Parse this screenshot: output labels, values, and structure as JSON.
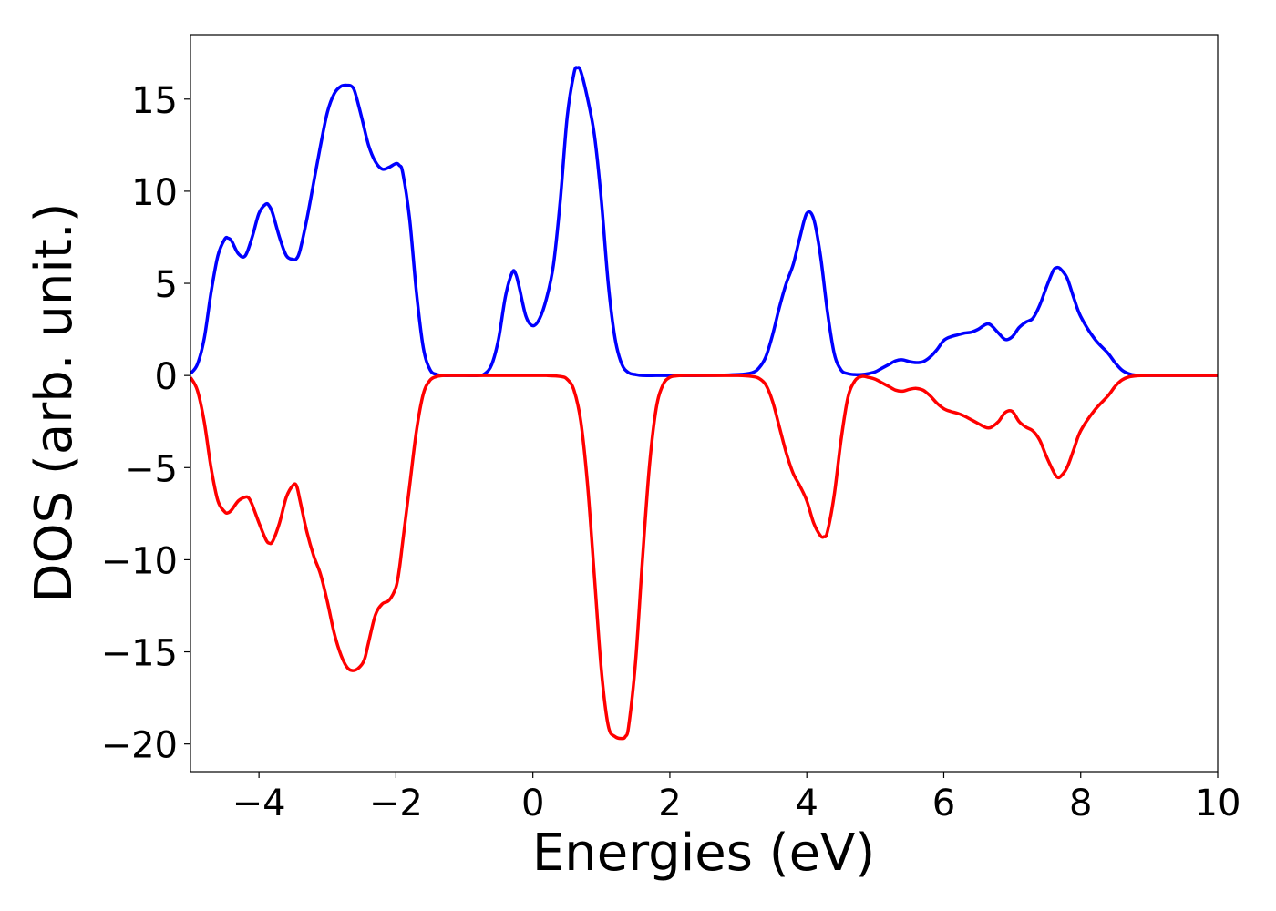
{
  "chart_data": {
    "type": "line",
    "title": "",
    "xlabel": "Energies (eV)",
    "ylabel": "DOS (arb. unit.)",
    "xlim": [
      -5,
      10
    ],
    "ylim": [
      -21.5,
      18.5
    ],
    "xticks": [
      -4,
      -2,
      0,
      2,
      4,
      6,
      8,
      10
    ],
    "xtick_labels": [
      "−4",
      "−2",
      "0",
      "2",
      "4",
      "6",
      "8",
      "10"
    ],
    "yticks": [
      15,
      10,
      5,
      0,
      -5,
      -10,
      -15,
      -20
    ],
    "ytick_labels": [
      "15",
      "10",
      "5",
      "0",
      "−5",
      "−10",
      "−15",
      "−20"
    ],
    "grid": false,
    "legend": "none",
    "series": [
      {
        "color": "#0000ff",
        "x": [
          -5.0,
          -4.9,
          -4.8,
          -4.7,
          -4.6,
          -4.5,
          -4.45,
          -4.4,
          -4.3,
          -4.2,
          -4.1,
          -4.0,
          -3.9,
          -3.85,
          -3.8,
          -3.7,
          -3.6,
          -3.5,
          -3.45,
          -3.4,
          -3.3,
          -3.2,
          -3.1,
          -3.0,
          -2.9,
          -2.8,
          -2.7,
          -2.65,
          -2.6,
          -2.5,
          -2.4,
          -2.3,
          -2.2,
          -2.1,
          -2.0,
          -1.95,
          -1.9,
          -1.8,
          -1.7,
          -1.6,
          -1.5,
          -1.4,
          -1.3,
          -1.2,
          -1.0,
          -0.8,
          -0.7,
          -0.6,
          -0.5,
          -0.4,
          -0.3,
          -0.25,
          -0.2,
          -0.1,
          0.0,
          0.1,
          0.2,
          0.3,
          0.4,
          0.5,
          0.6,
          0.65,
          0.7,
          0.8,
          0.9,
          1.0,
          1.1,
          1.2,
          1.3,
          1.4,
          1.5,
          1.6,
          1.8,
          2.0,
          2.5,
          3.0,
          3.2,
          3.3,
          3.4,
          3.5,
          3.6,
          3.7,
          3.8,
          3.9,
          4.0,
          4.1,
          4.2,
          4.3,
          4.4,
          4.5,
          4.6,
          4.7,
          4.8,
          4.9,
          5.0,
          5.1,
          5.2,
          5.3,
          5.4,
          5.5,
          5.6,
          5.7,
          5.8,
          5.9,
          6.0,
          6.1,
          6.2,
          6.3,
          6.4,
          6.5,
          6.6,
          6.65,
          6.7,
          6.8,
          6.9,
          7.0,
          7.1,
          7.2,
          7.3,
          7.4,
          7.5,
          7.6,
          7.65,
          7.7,
          7.8,
          7.9,
          8.0,
          8.2,
          8.4,
          8.5,
          8.6,
          8.7,
          8.8,
          9.0,
          9.5,
          10.0
        ],
        "y": [
          0.1,
          0.6,
          2.0,
          4.5,
          6.5,
          7.4,
          7.45,
          7.3,
          6.6,
          6.5,
          7.5,
          8.8,
          9.3,
          9.2,
          8.8,
          7.5,
          6.5,
          6.3,
          6.35,
          6.8,
          8.5,
          10.5,
          12.5,
          14.3,
          15.3,
          15.7,
          15.75,
          15.7,
          15.4,
          14.0,
          12.5,
          11.6,
          11.2,
          11.3,
          11.5,
          11.4,
          11.0,
          8.5,
          4.5,
          1.5,
          0.3,
          0.05,
          0.0,
          0.0,
          0.0,
          0.0,
          0.1,
          0.6,
          2.0,
          4.3,
          5.6,
          5.5,
          4.8,
          3.2,
          2.7,
          3.1,
          4.2,
          6.0,
          9.5,
          14.0,
          16.4,
          16.7,
          16.5,
          15.0,
          13.0,
          9.5,
          5.0,
          2.0,
          0.6,
          0.15,
          0.05,
          0.0,
          0.0,
          0.0,
          0.0,
          0.05,
          0.15,
          0.4,
          1.0,
          2.2,
          3.7,
          5.0,
          6.0,
          7.5,
          8.8,
          8.5,
          6.5,
          3.5,
          1.2,
          0.3,
          0.1,
          0.05,
          0.05,
          0.1,
          0.2,
          0.4,
          0.6,
          0.8,
          0.85,
          0.75,
          0.7,
          0.75,
          1.0,
          1.4,
          1.9,
          2.1,
          2.2,
          2.3,
          2.35,
          2.5,
          2.75,
          2.8,
          2.7,
          2.3,
          1.95,
          2.1,
          2.6,
          2.9,
          3.1,
          3.8,
          4.8,
          5.7,
          5.85,
          5.8,
          5.3,
          4.2,
          3.2,
          2.0,
          1.2,
          0.7,
          0.3,
          0.1,
          0.02,
          0.0,
          0.0,
          0.0
        ]
      },
      {
        "color": "#ff0000",
        "x": [
          -5.0,
          -4.9,
          -4.8,
          -4.7,
          -4.6,
          -4.5,
          -4.45,
          -4.4,
          -4.3,
          -4.2,
          -4.15,
          -4.1,
          -4.0,
          -3.9,
          -3.85,
          -3.8,
          -3.7,
          -3.6,
          -3.5,
          -3.45,
          -3.4,
          -3.3,
          -3.2,
          -3.1,
          -3.0,
          -2.9,
          -2.8,
          -2.7,
          -2.6,
          -2.5,
          -2.45,
          -2.4,
          -2.3,
          -2.2,
          -2.1,
          -2.0,
          -1.95,
          -1.9,
          -1.8,
          -1.7,
          -1.6,
          -1.5,
          -1.4,
          -1.3,
          -1.2,
          -1.0,
          -0.5,
          0.0,
          0.2,
          0.4,
          0.5,
          0.6,
          0.7,
          0.8,
          0.9,
          1.0,
          1.1,
          1.2,
          1.3,
          1.35,
          1.4,
          1.5,
          1.6,
          1.7,
          1.8,
          1.9,
          2.0,
          2.1,
          2.2,
          2.5,
          3.0,
          3.2,
          3.3,
          3.4,
          3.5,
          3.6,
          3.7,
          3.8,
          3.9,
          4.0,
          4.1,
          4.2,
          4.25,
          4.3,
          4.4,
          4.5,
          4.6,
          4.7,
          4.8,
          4.9,
          5.0,
          5.1,
          5.2,
          5.3,
          5.4,
          5.5,
          5.6,
          5.7,
          5.8,
          5.9,
          6.0,
          6.1,
          6.2,
          6.3,
          6.4,
          6.5,
          6.6,
          6.65,
          6.7,
          6.8,
          6.9,
          7.0,
          7.1,
          7.2,
          7.3,
          7.4,
          7.5,
          7.6,
          7.65,
          7.7,
          7.8,
          7.9,
          8.0,
          8.2,
          8.4,
          8.5,
          8.6,
          8.7,
          8.8,
          9.0,
          9.5,
          10.0
        ],
        "y": [
          -0.1,
          -0.8,
          -2.5,
          -5.0,
          -6.8,
          -7.4,
          -7.45,
          -7.3,
          -6.8,
          -6.6,
          -6.65,
          -7.0,
          -8.0,
          -8.9,
          -9.1,
          -9.0,
          -8.0,
          -6.6,
          -5.95,
          -6.0,
          -6.8,
          -8.5,
          -9.8,
          -10.8,
          -12.3,
          -14.0,
          -15.2,
          -15.9,
          -16.0,
          -15.7,
          -15.3,
          -14.5,
          -13.0,
          -12.4,
          -12.2,
          -11.5,
          -10.5,
          -9.0,
          -6.0,
          -3.0,
          -1.0,
          -0.25,
          -0.05,
          0.0,
          0.0,
          0.0,
          0.0,
          0.0,
          0.0,
          -0.05,
          -0.2,
          -0.8,
          -2.5,
          -6.0,
          -11.0,
          -16.0,
          -19.0,
          -19.6,
          -19.7,
          -19.6,
          -19.0,
          -15.5,
          -10.0,
          -5.0,
          -1.8,
          -0.5,
          -0.1,
          -0.02,
          0.0,
          0.0,
          0.0,
          -0.05,
          -0.15,
          -0.5,
          -1.4,
          -2.8,
          -4.2,
          -5.3,
          -6.0,
          -6.8,
          -8.0,
          -8.7,
          -8.75,
          -8.5,
          -6.5,
          -3.5,
          -1.2,
          -0.3,
          -0.05,
          -0.1,
          -0.2,
          -0.4,
          -0.6,
          -0.8,
          -0.85,
          -0.75,
          -0.7,
          -0.8,
          -1.1,
          -1.5,
          -1.8,
          -1.95,
          -2.05,
          -2.2,
          -2.4,
          -2.6,
          -2.8,
          -2.85,
          -2.8,
          -2.5,
          -2.0,
          -1.95,
          -2.5,
          -2.8,
          -3.0,
          -3.5,
          -4.4,
          -5.2,
          -5.5,
          -5.5,
          -5.0,
          -4.0,
          -3.0,
          -1.9,
          -1.1,
          -0.6,
          -0.25,
          -0.08,
          -0.02,
          0.0,
          0.0,
          0.0
        ]
      }
    ]
  }
}
